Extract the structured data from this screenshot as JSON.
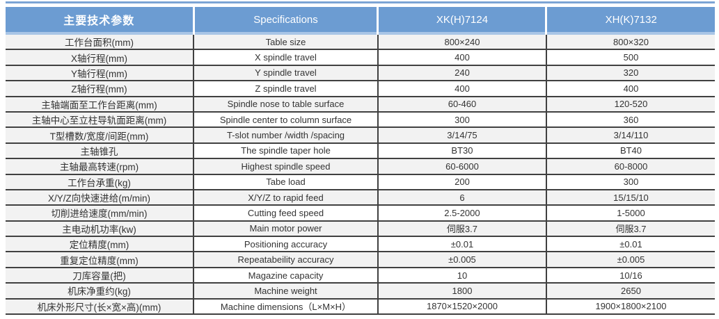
{
  "colors": {
    "header_bg": "#6C9CD2",
    "header_strip": "#A8C5E6",
    "top_line": "#7CA4D4",
    "row_alt_bg": "#F2F2F2",
    "grid_border": "#404040",
    "header_text": "#FFFFFF",
    "body_text": "#333333"
  },
  "table": {
    "columns": [
      {
        "key": "param",
        "label": "主要技术参数"
      },
      {
        "key": "spec",
        "label": "Specifications"
      },
      {
        "key": "xk7124",
        "label": "XK(H)7124"
      },
      {
        "key": "xh7132",
        "label": "XH(K)7132"
      }
    ],
    "rows": [
      {
        "param": "工作台面积(mm)",
        "spec": "Table size",
        "xk7124": "800×240",
        "xh7132": "800×320"
      },
      {
        "param": "X轴行程(mm)",
        "spec": "X spindle travel",
        "xk7124": "400",
        "xh7132": "500"
      },
      {
        "param": "Y轴行程(mm)",
        "spec": "Y spindle travel",
        "xk7124": "240",
        "xh7132": "320"
      },
      {
        "param": "Z轴行程(mm)",
        "spec": "Z spindle travel",
        "xk7124": "400",
        "xh7132": "400"
      },
      {
        "param": "主轴端面至工作台距离(mm)",
        "spec": "Spindle nose to table surface",
        "xk7124": "60-460",
        "xh7132": "120-520"
      },
      {
        "param": "主轴中心至立柱导轨面距离(mm)",
        "spec": "Spindle center to column surface",
        "xk7124": "300",
        "xh7132": "360"
      },
      {
        "param": "T型槽数/宽度/间距(mm)",
        "spec": "T-slot  number /width /spacing",
        "xk7124": "3/14/75",
        "xh7132": "3/14/110"
      },
      {
        "param": "主轴锥孔",
        "spec": "The spindle taper hole",
        "xk7124": "BT30",
        "xh7132": "BT40"
      },
      {
        "param": "主轴最高转速(rpm)",
        "spec": "Highest spindle speed",
        "xk7124": "60-6000",
        "xh7132": "60-8000"
      },
      {
        "param": "工作台承重(kg)",
        "spec": "Tabe load",
        "xk7124": "200",
        "xh7132": "300"
      },
      {
        "param": "X/Y/Z向快速进给(m/min)",
        "spec": "X/Y/Z to rapid feed",
        "xk7124": "6",
        "xh7132": "15/15/10"
      },
      {
        "param": "切削进给速度(mm/min)",
        "spec": "Cutting feed speed",
        "xk7124": "2.5-2000",
        "xh7132": "1-5000"
      },
      {
        "param": "主电动机功率(kw)",
        "spec": "Main motor power",
        "xk7124": "伺服3.7",
        "xh7132": "伺服3.7"
      },
      {
        "param": "定位精度(mm)",
        "spec": "Positioning accuracy",
        "xk7124": "±0.01",
        "xh7132": "±0.01"
      },
      {
        "param": "重复定位精度(mm)",
        "spec": "Repeatabeility accuracy",
        "xk7124": "±0.005",
        "xh7132": "±0.005"
      },
      {
        "param": "刀库容量(把)",
        "spec": "Magazine capacity",
        "xk7124": "10",
        "xh7132": "10/16"
      },
      {
        "param": "机床净重约(kg)",
        "spec": "Machine weight",
        "xk7124": "1800",
        "xh7132": "2650"
      },
      {
        "param": "机床外形尺寸(长×宽×高)(mm)",
        "spec": "Machine dimensions（L×M×H）",
        "xk7124": "1870×1520×2000",
        "xh7132": "1900×1800×2100"
      }
    ]
  }
}
